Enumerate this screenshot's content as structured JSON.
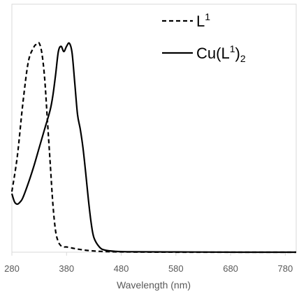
{
  "chart_data": {
    "type": "line",
    "title": "",
    "xlabel": "Wavelength (nm)",
    "ylabel": "",
    "xlim": [
      280,
      800
    ],
    "ylim": [
      0,
      1
    ],
    "x_ticks": [
      280,
      380,
      480,
      580,
      680,
      780
    ],
    "x_tick_labels": [
      "280",
      "380",
      "480",
      "580",
      "680",
      "780"
    ],
    "grid": false,
    "legend_position": "top-right",
    "series": [
      {
        "name": "L1",
        "label_base": "L",
        "label_sup": "1",
        "style": "dashed",
        "color": "#000000",
        "x": [
          280,
          290,
          300,
          310,
          320,
          325,
          330,
          335,
          340,
          345,
          350,
          355,
          360,
          365,
          370,
          375,
          380,
          390,
          400,
          420,
          450,
          500,
          600,
          700,
          800
        ],
        "y": [
          0.29,
          0.46,
          0.71,
          0.91,
          0.98,
          0.995,
          1.0,
          0.95,
          0.83,
          0.63,
          0.43,
          0.23,
          0.1,
          0.05,
          0.03,
          0.025,
          0.025,
          0.02,
          0.015,
          0.008,
          0.003,
          0.001,
          0.0,
          0.0,
          0.0
        ]
      },
      {
        "name": "Cu(L1)2",
        "label_base": "Cu(L",
        "label_sup": "1",
        "label_end": ")",
        "label_sub": "2",
        "style": "solid",
        "color": "#000000",
        "x": [
          280,
          285,
          290,
          295,
          300,
          310,
          320,
          330,
          340,
          350,
          355,
          360,
          365,
          370,
          375,
          380,
          385,
          390,
          395,
          400,
          405,
          410,
          415,
          420,
          425,
          430,
          440,
          450,
          470,
          500,
          600,
          700,
          800
        ],
        "y": [
          0.28,
          0.24,
          0.23,
          0.24,
          0.26,
          0.33,
          0.41,
          0.5,
          0.59,
          0.68,
          0.75,
          0.85,
          0.96,
          0.985,
          0.96,
          0.985,
          1.0,
          0.955,
          0.81,
          0.66,
          0.59,
          0.5,
          0.38,
          0.25,
          0.14,
          0.07,
          0.025,
          0.01,
          0.004,
          0.002,
          0.001,
          0.0,
          0.0
        ]
      }
    ]
  }
}
